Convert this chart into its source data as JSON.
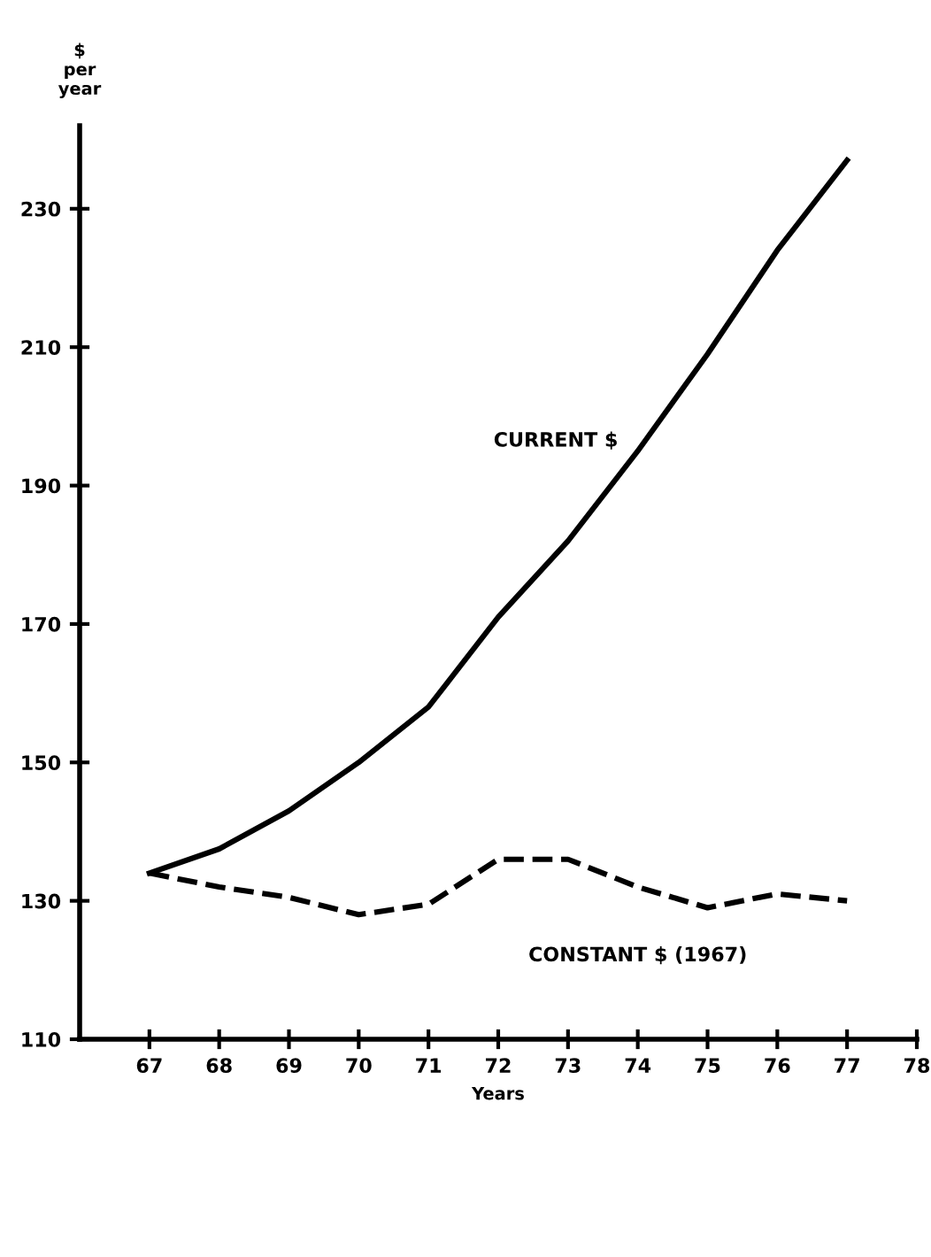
{
  "chart_data": {
    "type": "line",
    "ylabel": "$\nper\nyear",
    "xlabel": "Years",
    "x": [
      67,
      68,
      69,
      70,
      71,
      72,
      73,
      74,
      75,
      76,
      77
    ],
    "xlim": [
      66,
      78
    ],
    "xticks": [
      67,
      68,
      69,
      70,
      71,
      72,
      73,
      74,
      75,
      76,
      77,
      78
    ],
    "ylim": [
      110,
      242
    ],
    "yticks": [
      110,
      130,
      150,
      170,
      190,
      210,
      230
    ],
    "grid": false,
    "legend": false,
    "series": [
      {
        "name": "CURRENT $",
        "color": "#000000",
        "line_style": "solid",
        "values": [
          134,
          137.5,
          143,
          150,
          158,
          171,
          182,
          195,
          209,
          224,
          237
        ]
      },
      {
        "name": "CONSTANT $ (1967)",
        "color": "#000000",
        "line_style": "dashed",
        "values": [
          134,
          132,
          130.5,
          128,
          129.5,
          136,
          136,
          132,
          129,
          131,
          130
        ]
      }
    ]
  }
}
